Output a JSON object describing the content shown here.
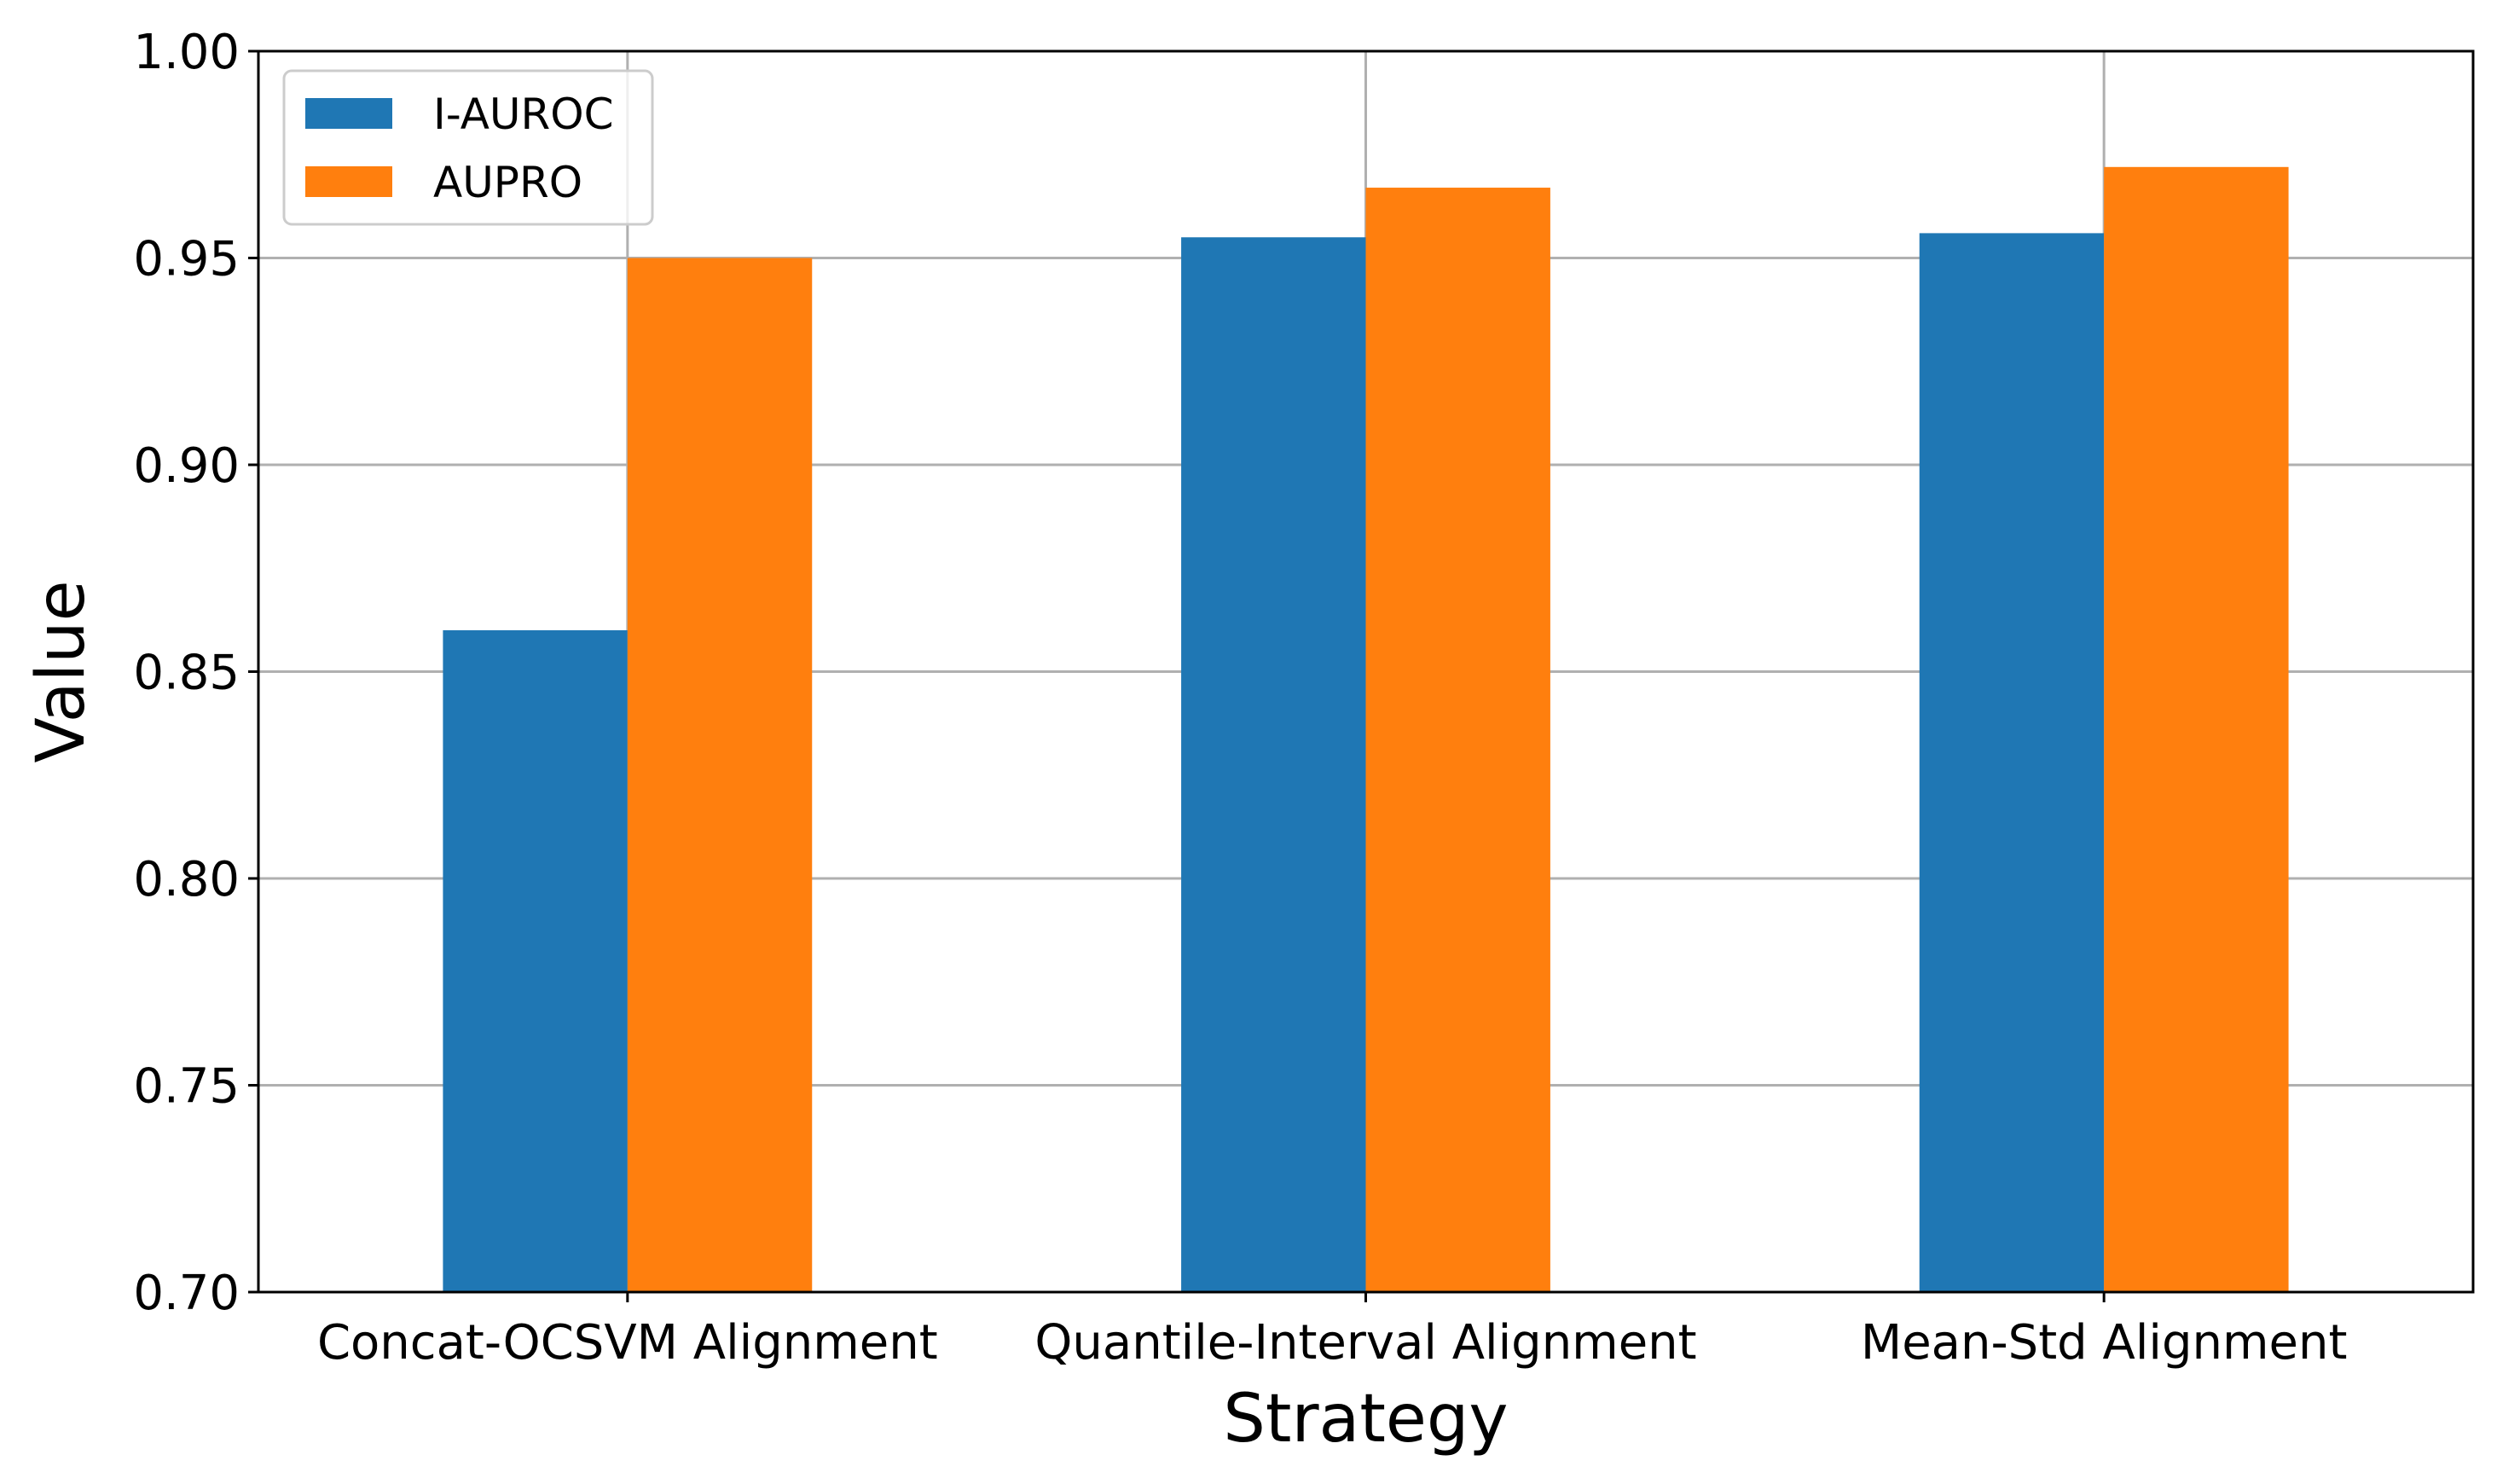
{
  "chart_data": {
    "type": "bar",
    "title": "",
    "xlabel": "Strategy",
    "ylabel": "Value",
    "ylim": [
      0.7,
      1.0
    ],
    "yticks": [
      "0.70",
      "0.75",
      "0.80",
      "0.85",
      "0.90",
      "0.95",
      "1.00"
    ],
    "categories": [
      "Concat-OCSVM Alignment",
      "Quantile-Interval Alignment",
      "Mean-Std Alignment"
    ],
    "series": [
      {
        "name": "I-AUROC",
        "color": "#1f77b4",
        "values": [
          0.86,
          0.955,
          0.956
        ]
      },
      {
        "name": "AUPRO",
        "color": "#ff7f0e",
        "values": [
          0.95,
          0.967,
          0.972
        ]
      }
    ],
    "grid": true,
    "legend_position": "top-left"
  }
}
